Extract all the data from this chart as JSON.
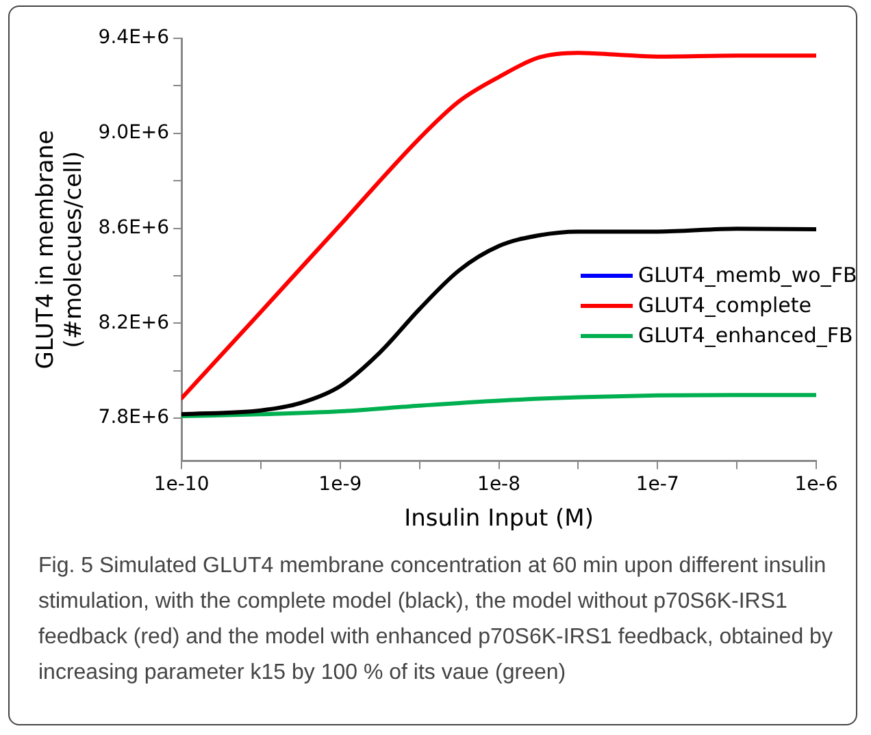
{
  "chart_data": {
    "type": "line",
    "xlabel": "Insulin Input (M)",
    "ylabel": "GLUT4 in membrane\n(#molecues/cell)",
    "log": "x",
    "xlim": [
      1e-10,
      1e-06
    ],
    "xticks": [
      {
        "value": 1e-10,
        "label": "1e-10"
      },
      {
        "value": 3.162e-10,
        "label": null
      },
      {
        "value": 1e-09,
        "label": "1e-9"
      },
      {
        "value": 3.162e-09,
        "label": null
      },
      {
        "value": 1e-08,
        "label": "1e-8"
      },
      {
        "value": 3.162e-08,
        "label": null
      },
      {
        "value": 1e-07,
        "label": "1e-7"
      },
      {
        "value": 3.162e-07,
        "label": null
      },
      {
        "value": 1e-06,
        "label": "1e-6"
      }
    ],
    "ylim": [
      7620000,
      9400000
    ],
    "yticks": [
      {
        "value": 7800000,
        "label": "7.8E+6"
      },
      {
        "value": 8000000,
        "label": null
      },
      {
        "value": 8200000,
        "label": "8.2E+6"
      },
      {
        "value": 8400000,
        "label": null
      },
      {
        "value": 8600000,
        "label": "8.6E+6"
      },
      {
        "value": 8800000,
        "label": null
      },
      {
        "value": 9000000,
        "label": "9.0E+6"
      },
      {
        "value": 9200000,
        "label": null
      },
      {
        "value": 9400000,
        "label": "9.4E+6"
      }
    ],
    "grid": false,
    "legend": "right",
    "marker": "none",
    "line_style": "solid",
    "series": [
      {
        "name": "GLUT4_memb_wo_FB",
        "color": "#0000ff"
      },
      {
        "name": "GLUT4_complete",
        "color": "#ff0000",
        "x": [
          1e-10,
          3.162e-10,
          1e-09,
          3.162e-09,
          5.623e-09,
          1e-08,
          1.778e-08,
          3.162e-08,
          5.623e-08,
          1e-07,
          3.162e-07,
          1e-06
        ],
        "values": [
          7884000,
          8248000,
          8614000,
          8979000,
          9135000,
          9237000,
          9319000,
          9339000,
          9331000,
          9323000,
          9327000,
          9327000
        ]
      },
      {
        "color": "#000000",
        "x": [
          1e-10,
          3.162e-10,
          5.623e-10,
          1e-09,
          1.778e-09,
          3.162e-09,
          5.623e-09,
          1e-08,
          1.778e-08,
          3.162e-08,
          1e-07,
          3.162e-07,
          1e-06
        ],
        "values": [
          7817000,
          7833000,
          7864000,
          7935000,
          8077000,
          8260000,
          8423000,
          8525000,
          8570000,
          8586000,
          8586000,
          8598000,
          8596000
        ]
      },
      {
        "name": "GLUT4_enhanced_FB",
        "color": "#00b050",
        "x": [
          1e-10,
          3.162e-10,
          1e-09,
          3.162e-09,
          1e-08,
          3.162e-08,
          1e-07,
          3.162e-07,
          1e-06
        ],
        "values": [
          7809000,
          7817000,
          7829000,
          7853000,
          7874000,
          7888000,
          7896000,
          7898000,
          7898000
        ]
      }
    ],
    "annotations": [
      "Fig. 5 Simulated GLUT4 membrane concentration at 60 min upon different insulin stimulation, with the complete model (black), the model without p70S6K-IRS1 feedback (red) and the model with enhanced p70S6K-IRS1 feedback, obtained by increasing parameter k15 by 100 % of its vaue (green)"
    ]
  }
}
